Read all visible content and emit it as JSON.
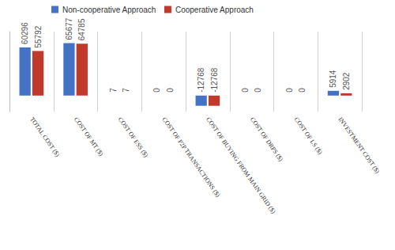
{
  "chart_data": {
    "type": "bar",
    "categories": [
      "TOTAL COST ($)",
      "COST OF MT ($)",
      "COST OF ESS ($)",
      "COST OF P2P TRANSACTIONS ($)",
      "COST OF BUYING FROM MAIN GRID ($)",
      "COST OF DRPS ($)",
      "COST OF LS ($)",
      "INVESTMENT COST ($)"
    ],
    "series": [
      {
        "name": "Non-cooperative Approach",
        "color": "#4472c4",
        "values": [
          60296,
          65677,
          7,
          0,
          -12768,
          0,
          0,
          5914
        ]
      },
      {
        "name": "Cooperative Approach",
        "color": "#c0392b",
        "values": [
          55792,
          64785,
          7,
          0,
          -12768,
          0,
          0,
          2902
        ]
      }
    ],
    "ylim": [
      -20000,
      80000
    ],
    "data_labels": true,
    "tick_labels": "x",
    "grid": false,
    "legend": "upper left"
  }
}
